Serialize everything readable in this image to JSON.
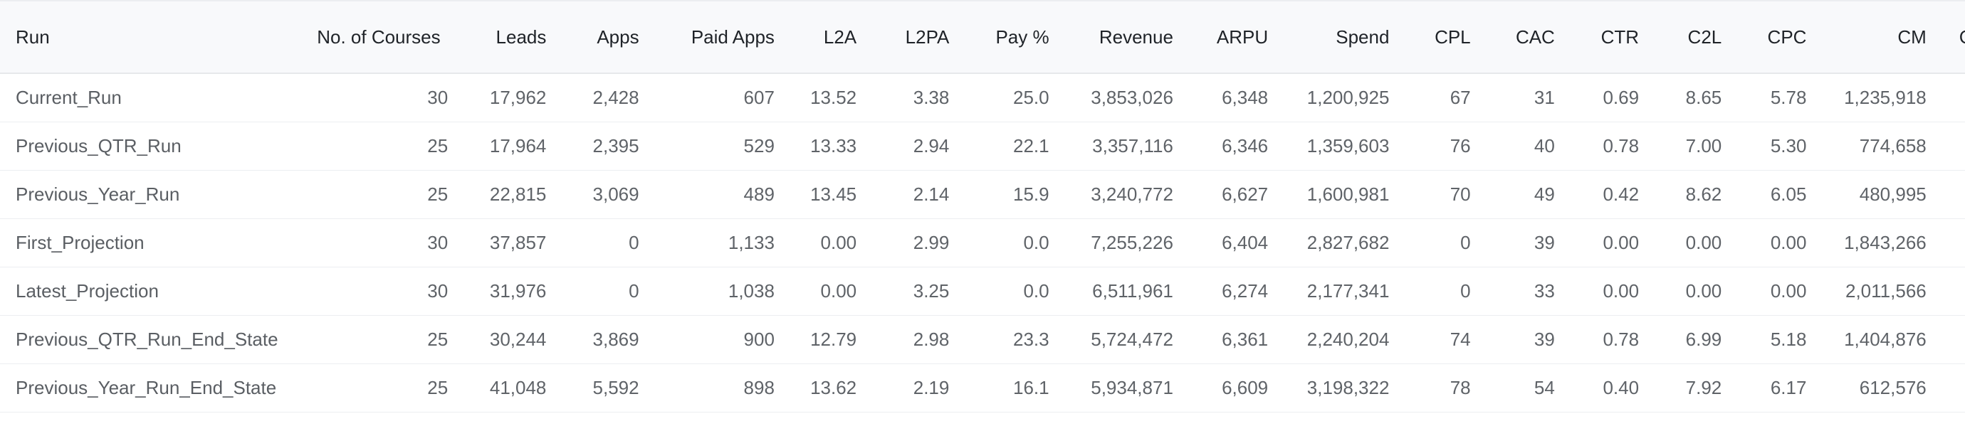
{
  "table": {
    "columns": [
      "Run",
      "No. of Courses",
      "Leads",
      "Apps",
      "Paid Apps",
      "L2A",
      "L2PA",
      "Pay %",
      "Revenue",
      "ARPU",
      "Spend",
      "CPL",
      "CAC",
      "CTR",
      "C2L",
      "CPC",
      "CM",
      "C"
    ],
    "rows": [
      [
        "Current_Run",
        "30",
        "17,962",
        "2,428",
        "607",
        "13.52",
        "3.38",
        "25.0",
        "3,853,026",
        "6,348",
        "1,200,925",
        "67",
        "31",
        "0.69",
        "8.65",
        "5.78",
        "1,235,918",
        ""
      ],
      [
        "Previous_QTR_Run",
        "25",
        "17,964",
        "2,395",
        "529",
        "13.33",
        "2.94",
        "22.1",
        "3,357,116",
        "6,346",
        "1,359,603",
        "76",
        "40",
        "0.78",
        "7.00",
        "5.30",
        "774,658",
        ""
      ],
      [
        "Previous_Year_Run",
        "25",
        "22,815",
        "3,069",
        "489",
        "13.45",
        "2.14",
        "15.9",
        "3,240,772",
        "6,627",
        "1,600,981",
        "70",
        "49",
        "0.42",
        "8.62",
        "6.05",
        "480,995",
        ""
      ],
      [
        "First_Projection",
        "30",
        "37,857",
        "0",
        "1,133",
        "0.00",
        "2.99",
        "0.0",
        "7,255,226",
        "6,404",
        "2,827,682",
        "0",
        "39",
        "0.00",
        "0.00",
        "0.00",
        "1,843,266",
        ""
      ],
      [
        "Latest_Projection",
        "30",
        "31,976",
        "0",
        "1,038",
        "0.00",
        "3.25",
        "0.0",
        "6,511,961",
        "6,274",
        "2,177,341",
        "0",
        "33",
        "0.00",
        "0.00",
        "0.00",
        "2,011,566",
        ""
      ],
      [
        "Previous_QTR_Run_End_State",
        "25",
        "30,244",
        "3,869",
        "900",
        "12.79",
        "2.98",
        "23.3",
        "5,724,472",
        "6,361",
        "2,240,204",
        "74",
        "39",
        "0.78",
        "6.99",
        "5.18",
        "1,404,876",
        ""
      ],
      [
        "Previous_Year_Run_End_State",
        "25",
        "41,048",
        "5,592",
        "898",
        "13.62",
        "2.19",
        "16.1",
        "5,934,871",
        "6,609",
        "3,198,322",
        "78",
        "54",
        "0.40",
        "7.92",
        "6.17",
        "612,576",
        ""
      ]
    ]
  }
}
